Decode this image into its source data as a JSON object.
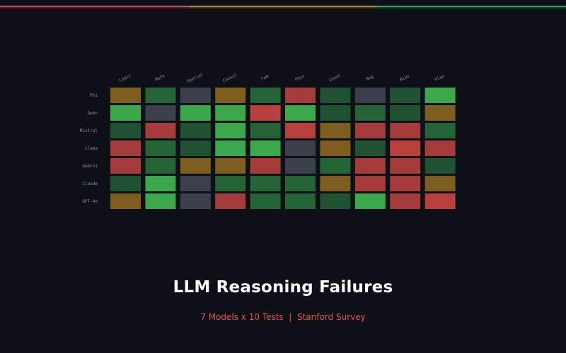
{
  "colors": {
    "background": "#0d1017",
    "top_bar": [
      "#c44a45",
      "#a88a2a",
      "#2ea045"
    ],
    "cell": {
      "bright_green": "#3ba84b",
      "green": "#236336",
      "dark_green": "#1e5230",
      "amber": "#7d5e1e",
      "red": "#a33c3a",
      "bright_red": "#b8403d",
      "gray": "#3a3f4b"
    },
    "title": "#ffffff",
    "subtitle": "#e0574f"
  },
  "title": "LLM Reasoning Failures",
  "subtitle": "7 Models x 10 Tests  |  Stanford Survey",
  "chart_data": {
    "type": "heatmap",
    "x_labels": [
      "Logic",
      "Math",
      "Spatial",
      "Causal",
      "ToM",
      "Phys",
      "Count",
      "Neg",
      "Bias",
      "Plan"
    ],
    "y_labels": [
      "Phi",
      "Qwen",
      "Mistral",
      "Llama",
      "Gemini",
      "Claude",
      "GPT-4o"
    ],
    "cells": [
      [
        "amber",
        "green",
        "gray",
        "amber",
        "green",
        "red",
        "dark_green",
        "gray",
        "dark_green",
        "bright_green"
      ],
      [
        "bright_green",
        "gray",
        "bright_green",
        "bright_green",
        "bright_red",
        "bright_green",
        "dark_green",
        "green",
        "dark_green",
        "amber"
      ],
      [
        "dark_green",
        "red",
        "dark_green",
        "bright_green",
        "green",
        "bright_red",
        "amber",
        "red",
        "red",
        "green"
      ],
      [
        "red",
        "green",
        "dark_green",
        "bright_green",
        "bright_green",
        "gray",
        "amber",
        "dark_green",
        "bright_red",
        "red"
      ],
      [
        "red",
        "green",
        "amber",
        "amber",
        "red",
        "gray",
        "green",
        "red",
        "red",
        "dark_green"
      ],
      [
        "dark_green",
        "bright_green",
        "gray",
        "green",
        "green",
        "green",
        "amber",
        "red",
        "red",
        "amber"
      ],
      [
        "amber",
        "bright_green",
        "gray",
        "red",
        "green",
        "green",
        "dark_green",
        "bright_green",
        "red",
        "bright_red"
      ]
    ],
    "grid": false,
    "legend": "none"
  }
}
